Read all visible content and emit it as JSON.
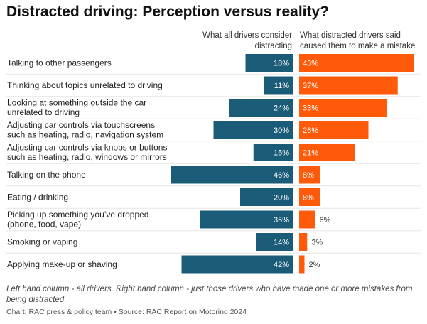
{
  "title": "Distracted driving: Perception versus reality?",
  "headers": {
    "left_line1": "What all drivers consider",
    "left_line2": "distracting",
    "right_line1": "What distracted drivers said",
    "right_line2": "caused them to make a mistake"
  },
  "colors": {
    "left": "#1a5c78",
    "right": "#ff5a0a",
    "divider": "#e6e6e6"
  },
  "chart_data": {
    "type": "bar",
    "orientation": "horizontal-diverging",
    "categories": [
      [
        "Talking to other passengers"
      ],
      [
        "Thinking about topics unrelated to driving"
      ],
      [
        "Looking at something outside the car",
        "unrelated to driving"
      ],
      [
        "Adjusting car controls via touchscreens",
        "such as heating, radio, navigation system"
      ],
      [
        "Adjusting car controls via knobs or buttons",
        "such as heating, radio, windows or mirrors"
      ],
      [
        "Talking on the phone"
      ],
      [
        "Eating / drinking"
      ],
      [
        "Picking up something you’ve dropped",
        "(phone, food, vape)"
      ],
      [
        "Smoking or vaping"
      ],
      [
        "Applying make-up or shaving"
      ]
    ],
    "series": [
      {
        "name": "What all drivers consider distracting",
        "values": [
          18,
          11,
          24,
          30,
          15,
          46,
          20,
          35,
          14,
          42
        ]
      },
      {
        "name": "What distracted drivers said caused them to make a mistake",
        "values": [
          43,
          37,
          33,
          26,
          21,
          8,
          8,
          6,
          3,
          2
        ]
      }
    ],
    "value_suffix": "%",
    "xlim": [
      0,
      46
    ]
  },
  "note": "Left hand column - all drivers. Right hand column - just those drivers who have made one or more mistakes from being distracted",
  "source": "Chart: RAC press & policy team • Source: RAC Report on Motoring 2024"
}
